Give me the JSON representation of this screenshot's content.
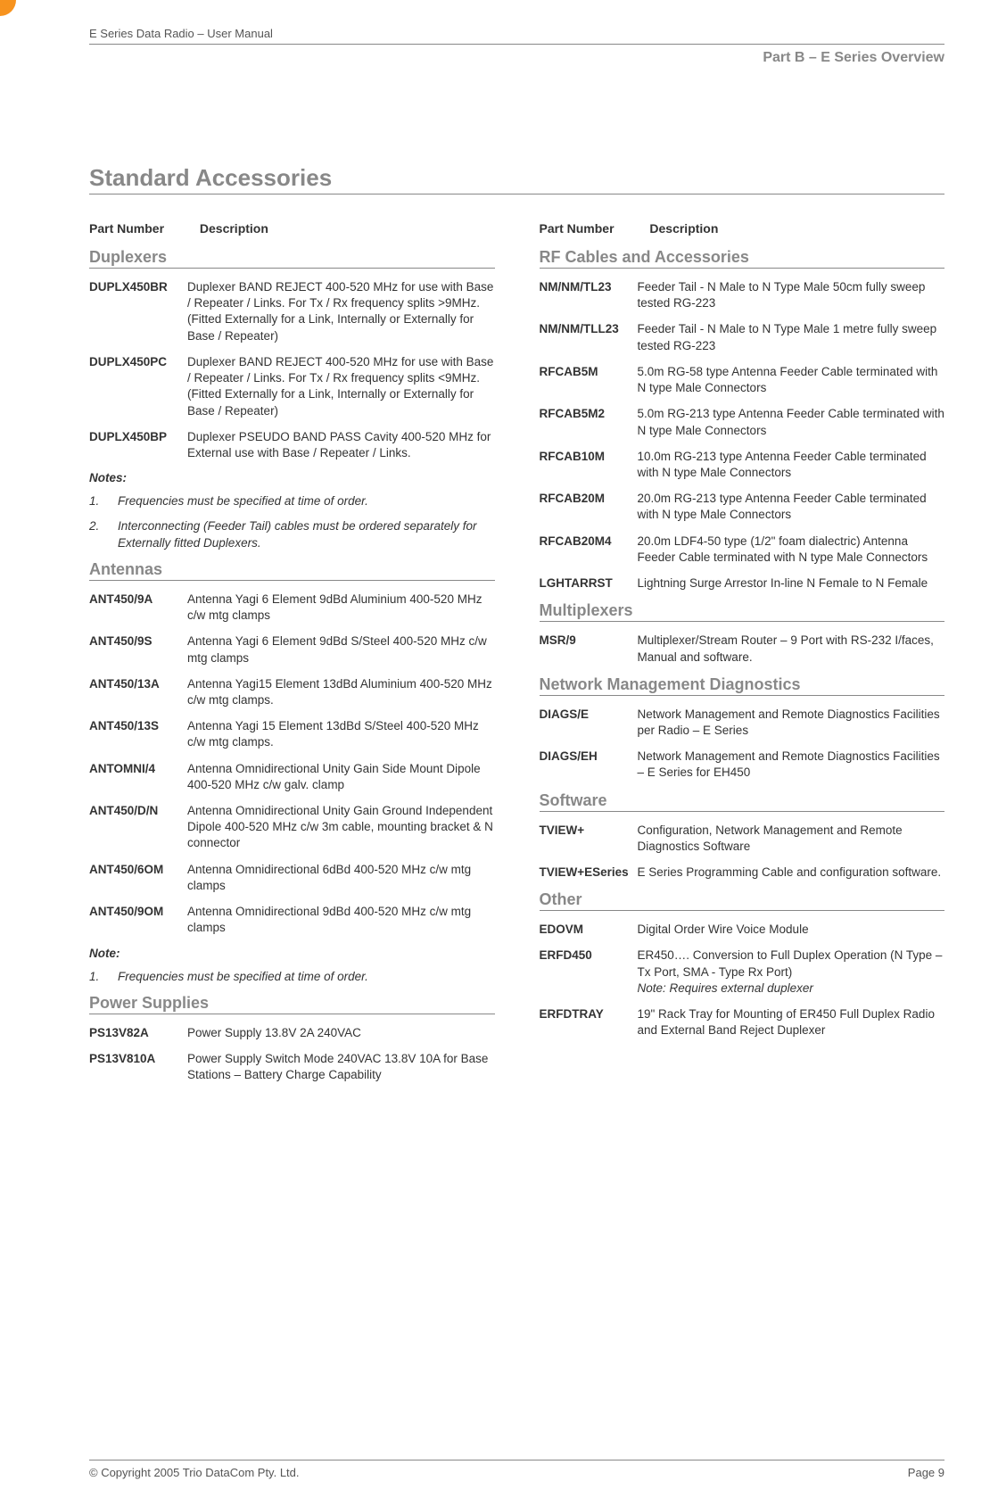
{
  "doc_title": "E Series Data Radio – User Manual",
  "part_title": "Part B – E Series Overview",
  "main_heading": "Standard Accessories",
  "column_headers": {
    "part_number": "Part Number",
    "description": "Description"
  },
  "left": {
    "duplexers": {
      "heading": "Duplexers",
      "items": [
        {
          "pn": "DUPLX450BR",
          "desc": "Duplexer BAND REJECT 400-520 MHz for use with Base / Repeater / Links. For Tx / Rx frequency splits >9MHz. (Fitted Externally for a Link, Internally or Externally for Base / Repeater)"
        },
        {
          "pn": "DUPLX450PC",
          "desc": "Duplexer BAND REJECT 400-520 MHz for use with Base / Repeater / Links. For Tx / Rx frequency splits <9MHz. (Fitted Externally for a Link, Internally or Externally for Base / Repeater)"
        },
        {
          "pn": "DUPLX450BP",
          "desc": "Duplexer PSEUDO BAND PASS Cavity 400-520 MHz for External use with Base / Repeater / Links."
        }
      ],
      "notes_label": "Notes:",
      "notes": [
        {
          "num": "1.",
          "text": "Frequencies must be specified at time of order."
        },
        {
          "num": "2.",
          "text": "Interconnecting (Feeder Tail) cables must be ordered separately for Externally fitted Duplexers."
        }
      ]
    },
    "antennas": {
      "heading": "Antennas",
      "items": [
        {
          "pn": "ANT450/9A",
          "desc": "Antenna Yagi 6 Element 9dBd Aluminium 400-520 MHz c/w mtg clamps"
        },
        {
          "pn": "ANT450/9S",
          "desc": "Antenna Yagi 6 Element 9dBd S/Steel 400-520 MHz c/w mtg clamps"
        },
        {
          "pn": "ANT450/13A",
          "desc": "Antenna Yagi15 Element 13dBd Aluminium 400-520 MHz c/w mtg clamps."
        },
        {
          "pn": "ANT450/13S",
          "desc": "Antenna Yagi 15 Element 13dBd S/Steel 400-520 MHz c/w mtg clamps."
        },
        {
          "pn": "ANTOMNI/4",
          "desc": "Antenna Omnidirectional Unity Gain Side Mount Dipole 400-520 MHz c/w galv. clamp"
        },
        {
          "pn": "ANT450/D/N",
          "desc": "Antenna Omnidirectional Unity Gain Ground Independent Dipole  400-520 MHz  c/w 3m cable, mounting bracket & N connector"
        },
        {
          "pn": "ANT450/6OM",
          "desc": "Antenna Omnidirectional  6dBd 400-520 MHz c/w mtg clamps"
        },
        {
          "pn": "ANT450/9OM",
          "desc": "Antenna Omnidirectional 9dBd 400-520 MHz c/w mtg clamps"
        }
      ],
      "notes_label": "Note:",
      "notes": [
        {
          "num": "1.",
          "text": "Frequencies must be specified at time of order."
        }
      ]
    },
    "power": {
      "heading": "Power Supplies",
      "items": [
        {
          "pn": "PS13V82A",
          "desc": "Power Supply 13.8V 2A 240VAC"
        },
        {
          "pn": "PS13V810A",
          "desc": "Power Supply Switch Mode 240VAC 13.8V 10A for Base Stations – Battery Charge Capability"
        }
      ]
    }
  },
  "right": {
    "rf": {
      "heading": "RF Cables and Accessories",
      "items": [
        {
          "pn": "NM/NM/TL23",
          "desc": "Feeder Tail - N Male to N Type Male 50cm fully sweep tested RG-223"
        },
        {
          "pn": "NM/NM/TLL23",
          "desc": "Feeder Tail - N Male to N Type Male 1 metre fully sweep tested RG-223"
        },
        {
          "pn": "RFCAB5M",
          "desc": "5.0m RG-58 type Antenna Feeder Cable terminated with N type Male Connectors"
        },
        {
          "pn": "RFCAB5M2",
          "desc": "5.0m RG-213 type Antenna Feeder Cable terminated with N type Male Connectors"
        },
        {
          "pn": "RFCAB10M",
          "desc": "10.0m RG-213 type Antenna Feeder Cable terminated with N type Male Connectors"
        },
        {
          "pn": "RFCAB20M",
          "desc": "20.0m RG-213 type Antenna Feeder Cable terminated with N type Male Connectors"
        },
        {
          "pn": "RFCAB20M4",
          "desc": "20.0m LDF4-50 type (1/2\" foam dialectric) Antenna Feeder Cable terminated with N type Male Connectors"
        },
        {
          "pn": "LGHTARRST",
          "desc": "Lightning Surge Arrestor In-line N Female to N Female"
        }
      ]
    },
    "mux": {
      "heading": "Multiplexers",
      "items": [
        {
          "pn": "MSR/9",
          "desc": "Multiplexer/Stream Router – 9 Port with RS-232 I/faces, Manual and software."
        }
      ]
    },
    "diag": {
      "heading": "Network Management Diagnostics",
      "items": [
        {
          "pn": "DIAGS/E",
          "desc": "Network Management and Remote Diagnostics Facilities per Radio – E Series"
        },
        {
          "pn": "DIAGS/EH",
          "desc": "Network Management and Remote Diagnostics Facilities – E Series for EH450"
        }
      ]
    },
    "software": {
      "heading": "Software",
      "items": [
        {
          "pn": "TVIEW+",
          "desc": "Configuration, Network Management and Remote Diagnostics Software"
        },
        {
          "pn": "TVIEW+ESeries",
          "desc": "E Series Programming Cable and configuration software."
        }
      ]
    },
    "other": {
      "heading": "Other",
      "items": [
        {
          "pn": "EDOVM",
          "desc": "Digital Order Wire Voice Module"
        },
        {
          "pn": "ERFD450",
          "desc": "ER450…. Conversion to Full Duplex Operation (N Type – Tx Port, SMA - Type Rx Port)",
          "note": "Note: Requires external duplexer"
        },
        {
          "pn": "ERFDTRAY",
          "desc": "19\" Rack Tray for Mounting of ER450 Full Duplex Radio and External Band Reject Duplexer"
        }
      ]
    }
  },
  "footer": {
    "copyright": "© Copyright 2005 Trio DataCom Pty. Ltd.",
    "page": "Page 9"
  },
  "colors": {
    "heading_grey": "#888888",
    "text": "#333333",
    "tab": "#f7931e"
  }
}
